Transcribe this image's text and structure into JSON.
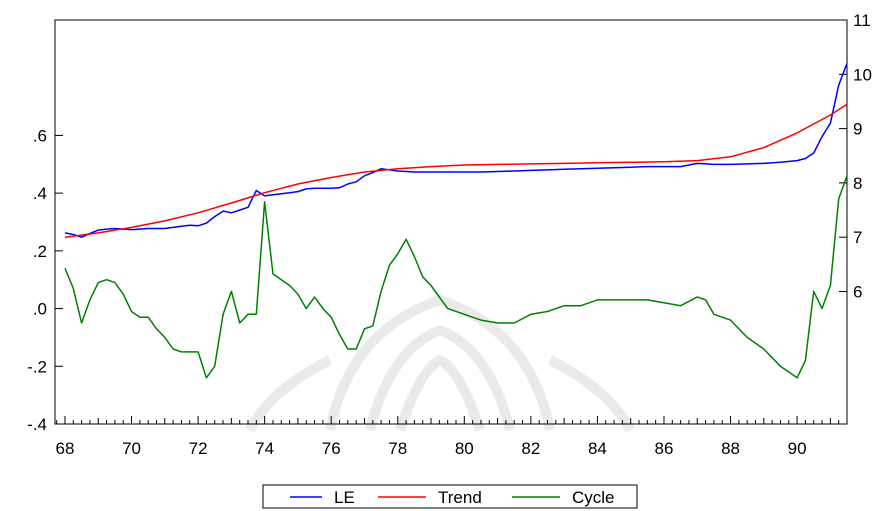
{
  "chart_data": {
    "type": "line",
    "title": "",
    "x_axis": {
      "range": [
        67.7,
        91.5
      ],
      "tick_labels": [
        "68",
        "70",
        "72",
        "74",
        "76",
        "78",
        "80",
        "82",
        "84",
        "86",
        "88",
        "90"
      ],
      "tick_values": [
        68,
        70,
        72,
        74,
        76,
        78,
        80,
        82,
        84,
        86,
        88,
        90
      ]
    },
    "y_left": {
      "range": [
        -0.4,
        1.0
      ],
      "tick_labels": [
        "-.4",
        "-.2",
        ".0",
        ".2",
        ".4",
        ".6"
      ],
      "tick_values": [
        -0.4,
        -0.2,
        0.0,
        0.2,
        0.4,
        0.6
      ]
    },
    "y_right": {
      "range": [
        3.56,
        11.0
      ],
      "tick_labels": [
        "6",
        "7",
        "8",
        "9",
        "10",
        "11"
      ],
      "tick_values": [
        6,
        7,
        8,
        9,
        10,
        11
      ]
    },
    "legend": {
      "placement": "bottom-center"
    },
    "series": [
      {
        "name": "LE",
        "axis": "right",
        "color": "#0000ff",
        "x": [
          68.0,
          68.25,
          68.5,
          68.75,
          69.0,
          69.25,
          69.5,
          69.75,
          70.0,
          70.25,
          70.5,
          70.75,
          71.0,
          71.25,
          71.5,
          71.75,
          72.0,
          72.25,
          72.5,
          72.75,
          73.0,
          73.25,
          73.5,
          73.75,
          74.0,
          74.25,
          74.5,
          74.75,
          75.0,
          75.25,
          75.5,
          75.75,
          76.0,
          76.25,
          76.5,
          76.75,
          77.0,
          77.25,
          77.5,
          77.75,
          78.0,
          78.25,
          78.5,
          78.75,
          79.0,
          79.5,
          80.0,
          80.5,
          81.0,
          81.5,
          82.0,
          82.5,
          83.0,
          83.5,
          84.0,
          84.5,
          85.0,
          85.5,
          86.0,
          86.5,
          87.0,
          87.25,
          87.5,
          88.0,
          88.5,
          89.0,
          89.5,
          90.0,
          90.25,
          90.5,
          90.75,
          91.0,
          91.25,
          91.5
        ],
        "values": [
          7.08,
          7.05,
          7.0,
          7.07,
          7.13,
          7.15,
          7.16,
          7.15,
          7.14,
          7.15,
          7.16,
          7.16,
          7.16,
          7.18,
          7.2,
          7.22,
          7.21,
          7.26,
          7.38,
          7.48,
          7.45,
          7.5,
          7.55,
          7.86,
          7.76,
          7.78,
          7.8,
          7.82,
          7.84,
          7.89,
          7.9,
          7.9,
          7.9,
          7.91,
          7.98,
          8.02,
          8.13,
          8.19,
          8.26,
          8.24,
          8.22,
          8.21,
          8.2,
          8.2,
          8.2,
          8.2,
          8.2,
          8.2,
          8.21,
          8.22,
          8.23,
          8.24,
          8.25,
          8.26,
          8.27,
          8.28,
          8.29,
          8.3,
          8.3,
          8.3,
          8.36,
          8.35,
          8.34,
          8.34,
          8.35,
          8.36,
          8.38,
          8.41,
          8.45,
          8.55,
          8.85,
          9.1,
          9.8,
          10.2
        ]
      },
      {
        "name": "Trend",
        "axis": "right",
        "color": "#ff0000",
        "x": [
          68.0,
          69.0,
          70.0,
          71.0,
          72.0,
          73.0,
          74.0,
          75.0,
          76.0,
          77.0,
          78.0,
          79.0,
          80.0,
          81.0,
          82.0,
          83.0,
          84.0,
          85.0,
          86.0,
          87.0,
          88.0,
          89.0,
          90.0,
          91.0,
          91.5
        ],
        "values": [
          7.0,
          7.08,
          7.18,
          7.3,
          7.45,
          7.63,
          7.82,
          7.98,
          8.1,
          8.2,
          8.26,
          8.3,
          8.33,
          8.34,
          8.35,
          8.36,
          8.37,
          8.38,
          8.39,
          8.41,
          8.48,
          8.65,
          8.92,
          9.25,
          9.45
        ]
      },
      {
        "name": "Cycle",
        "axis": "left",
        "color": "#008000",
        "x": [
          68.0,
          68.25,
          68.5,
          68.75,
          69.0,
          69.25,
          69.5,
          69.75,
          70.0,
          70.25,
          70.5,
          70.75,
          71.0,
          71.25,
          71.5,
          71.75,
          72.0,
          72.25,
          72.5,
          72.75,
          73.0,
          73.25,
          73.5,
          73.75,
          74.0,
          74.25,
          74.5,
          74.75,
          75.0,
          75.25,
          75.5,
          75.75,
          76.0,
          76.25,
          76.5,
          76.75,
          77.0,
          77.25,
          77.5,
          77.75,
          78.0,
          78.25,
          78.5,
          78.75,
          79.0,
          79.5,
          80.0,
          80.5,
          81.0,
          81.5,
          82.0,
          82.5,
          83.0,
          83.5,
          84.0,
          84.5,
          85.0,
          85.5,
          86.0,
          86.5,
          87.0,
          87.25,
          87.5,
          88.0,
          88.5,
          89.0,
          89.5,
          90.0,
          90.25,
          90.5,
          90.75,
          91.0,
          91.25,
          91.5
        ],
        "values": [
          0.14,
          0.07,
          -0.05,
          0.03,
          0.09,
          0.1,
          0.09,
          0.05,
          -0.01,
          -0.03,
          -0.03,
          -0.07,
          -0.1,
          -0.14,
          -0.15,
          -0.15,
          -0.15,
          -0.24,
          -0.2,
          -0.02,
          0.06,
          -0.05,
          -0.02,
          -0.02,
          0.37,
          0.12,
          0.1,
          0.08,
          0.05,
          0.0,
          0.04,
          0.0,
          -0.03,
          -0.09,
          -0.14,
          -0.14,
          -0.07,
          -0.06,
          0.06,
          0.15,
          0.19,
          0.24,
          0.18,
          0.11,
          0.08,
          0.0,
          -0.02,
          -0.04,
          -0.05,
          -0.05,
          -0.02,
          -0.01,
          0.01,
          0.01,
          0.03,
          0.03,
          0.03,
          0.03,
          0.02,
          0.01,
          0.04,
          0.03,
          -0.02,
          -0.04,
          -0.1,
          -0.14,
          -0.2,
          -0.24,
          -0.18,
          0.06,
          0.0,
          0.08,
          0.38,
          0.46
        ]
      }
    ]
  }
}
